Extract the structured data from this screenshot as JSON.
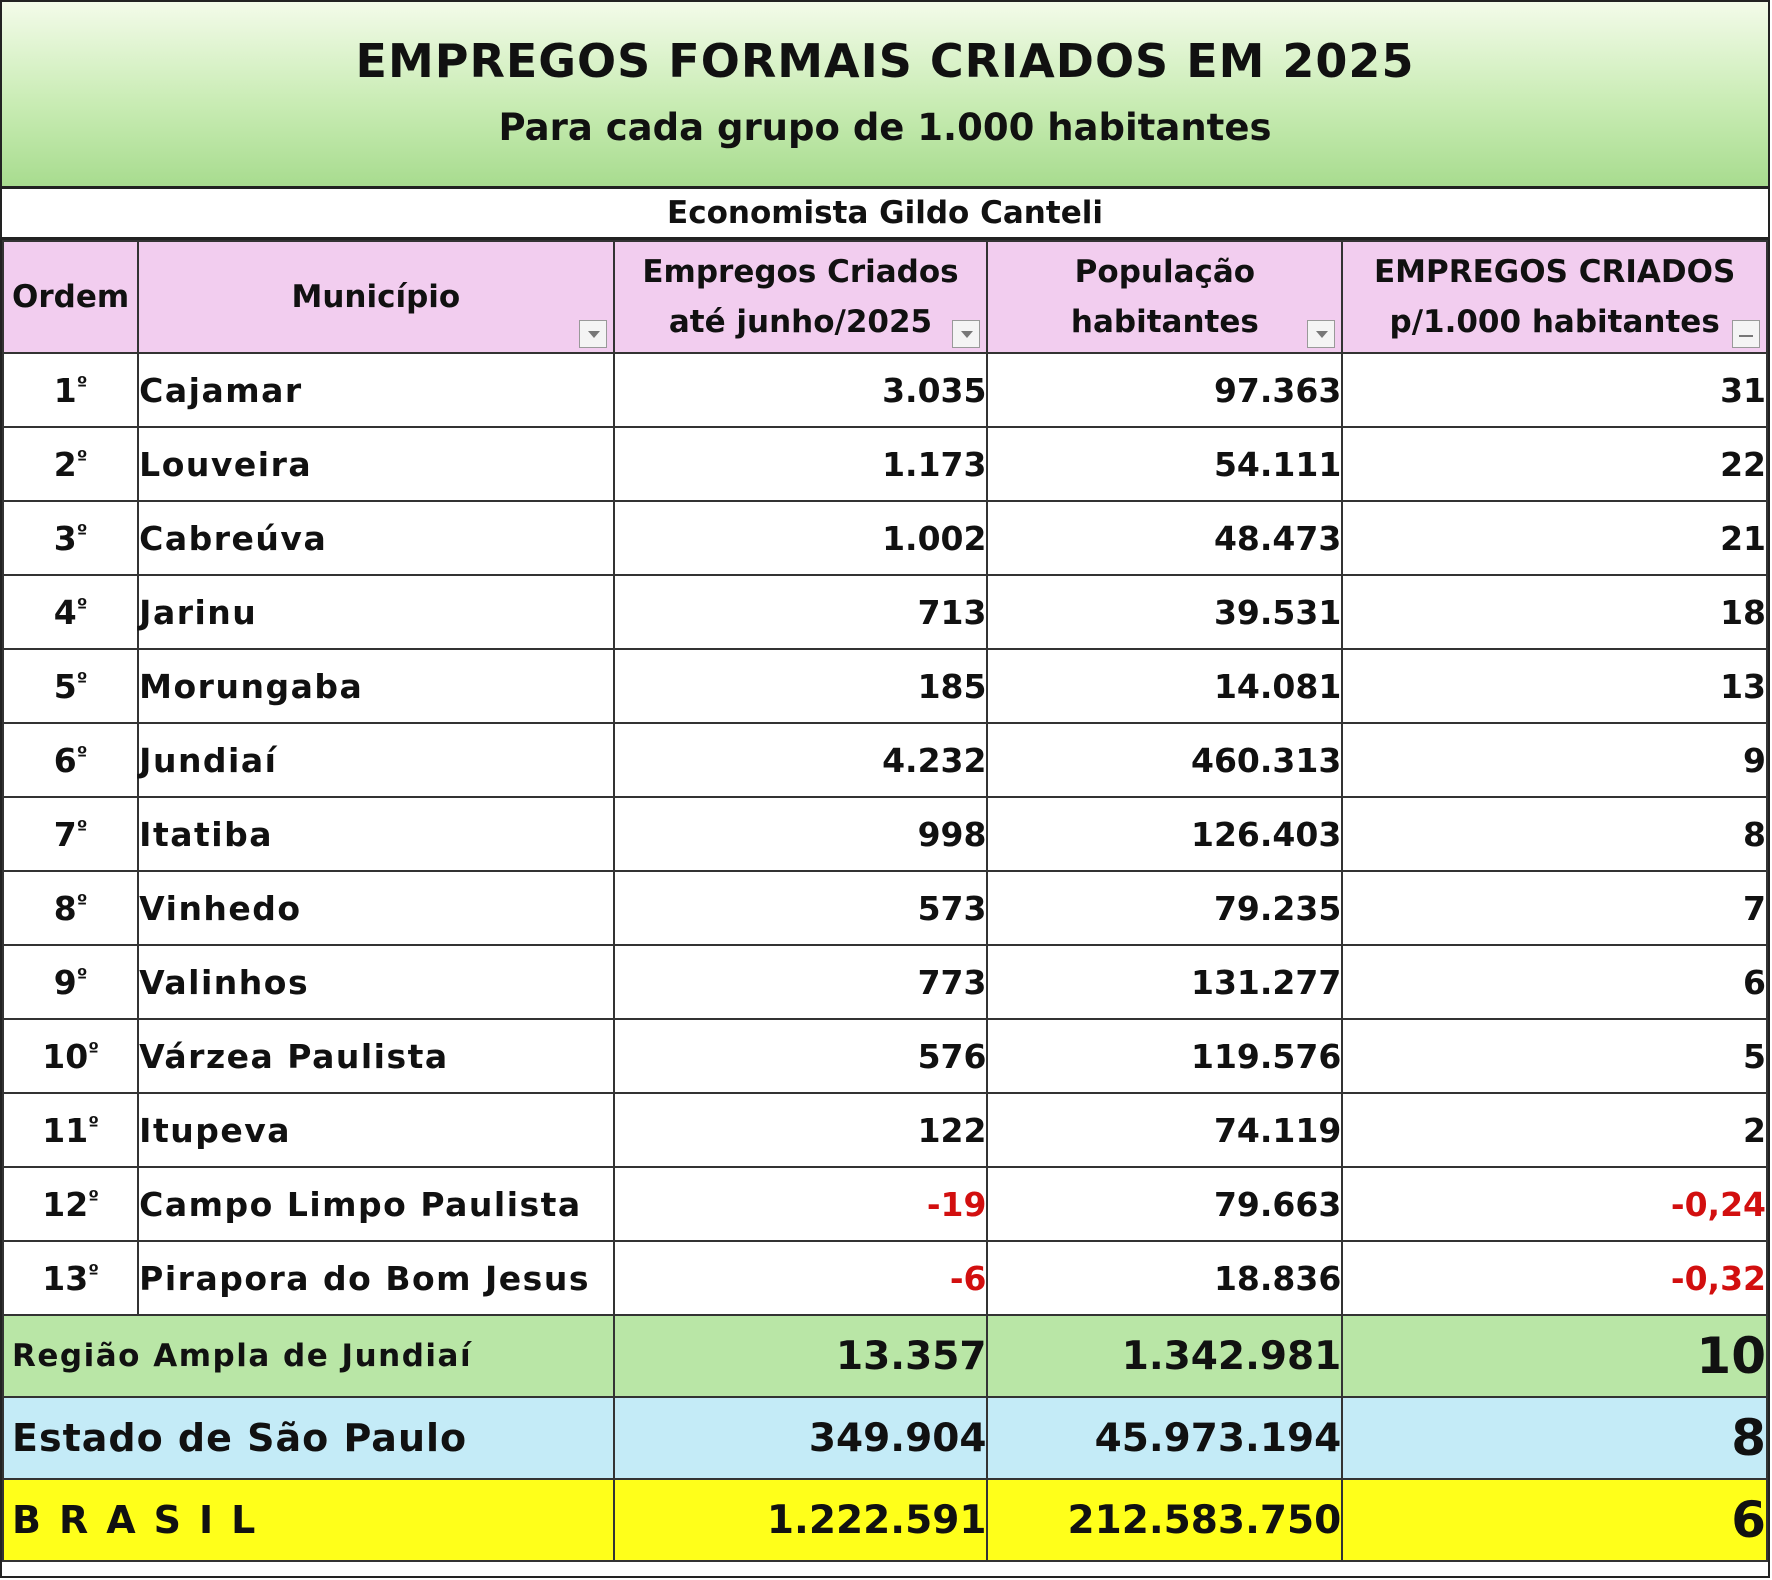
{
  "title": "EMPREGOS FORMAIS CRIADOS EM 2025",
  "subtitle": "Para cada grupo de 1.000 habitantes",
  "author": "Economista Gildo Canteli",
  "headers": {
    "ordem": "Ordem",
    "municipio": "Município",
    "empregos_l1": "Empregos Criados",
    "empregos_l2": "até junho/2025",
    "populacao_l1": "População",
    "populacao_l2": "habitantes",
    "rate_l1": "EMPREGOS CRIADOS",
    "rate_l2": "p/1.000 habitantes"
  },
  "rows": [
    {
      "rank": "1",
      "ord_suffix": "º",
      "municipio": "Cajamar",
      "empregos": "3.035",
      "populacao": "97.363",
      "rate": "31"
    },
    {
      "rank": "2",
      "ord_suffix": "º",
      "municipio": "Louveira",
      "empregos": "1.173",
      "populacao": "54.111",
      "rate": "22"
    },
    {
      "rank": "3",
      "ord_suffix": "º",
      "municipio": "Cabreúva",
      "empregos": "1.002",
      "populacao": "48.473",
      "rate": "21"
    },
    {
      "rank": "4",
      "ord_suffix": "º",
      "municipio": "Jarinu",
      "empregos": "713",
      "populacao": "39.531",
      "rate": "18"
    },
    {
      "rank": "5",
      "ord_suffix": "º",
      "municipio": "Morungaba",
      "empregos": "185",
      "populacao": "14.081",
      "rate": "13"
    },
    {
      "rank": "6",
      "ord_suffix": "º",
      "municipio": "Jundiaí",
      "empregos": "4.232",
      "populacao": "460.313",
      "rate": "9"
    },
    {
      "rank": "7",
      "ord_suffix": "º",
      "municipio": "Itatiba",
      "empregos": "998",
      "populacao": "126.403",
      "rate": "8"
    },
    {
      "rank": "8",
      "ord_suffix": "º",
      "municipio": "Vinhedo",
      "empregos": "573",
      "populacao": "79.235",
      "rate": "7"
    },
    {
      "rank": "9",
      "ord_suffix": "º",
      "municipio": "Valinhos",
      "empregos": "773",
      "populacao": "131.277",
      "rate": "6"
    },
    {
      "rank": "10",
      "ord_suffix": "º",
      "municipio": "Várzea Paulista",
      "empregos": "576",
      "populacao": "119.576",
      "rate": "5"
    },
    {
      "rank": "11",
      "ord_suffix": "º",
      "municipio": "Itupeva",
      "empregos": "122",
      "populacao": "74.119",
      "rate": "2"
    },
    {
      "rank": "12",
      "ord_suffix": "º",
      "municipio": "Campo Limpo Paulista",
      "empregos": "-19",
      "populacao": "79.663",
      "rate": "-0,24"
    },
    {
      "rank": "13",
      "ord_suffix": "º",
      "municipio": "Pirapora do Bom Jesus",
      "empregos": "-6",
      "populacao": "18.836",
      "rate": "-0,32"
    }
  ],
  "summary": {
    "regiao": {
      "label": "Região Ampla de Jundiaí",
      "empregos": "13.357",
      "populacao": "1.342.981",
      "rate": "10"
    },
    "estado": {
      "label": "Estado de São Paulo",
      "empregos": "349.904",
      "populacao": "45.973.194",
      "rate": "8"
    },
    "brasil": {
      "label": "BRASIL",
      "empregos": "1.222.591",
      "populacao": "212.583.750",
      "rate": "6"
    }
  },
  "colors": {
    "title_bg": "#c9ecb4",
    "header_bg": "#f2cdef",
    "regiao_bg": "#b9e6a6",
    "estado_bg": "#c4ebf7",
    "brasil_bg": "#ffff1a",
    "negative": "#d20f0f"
  }
}
